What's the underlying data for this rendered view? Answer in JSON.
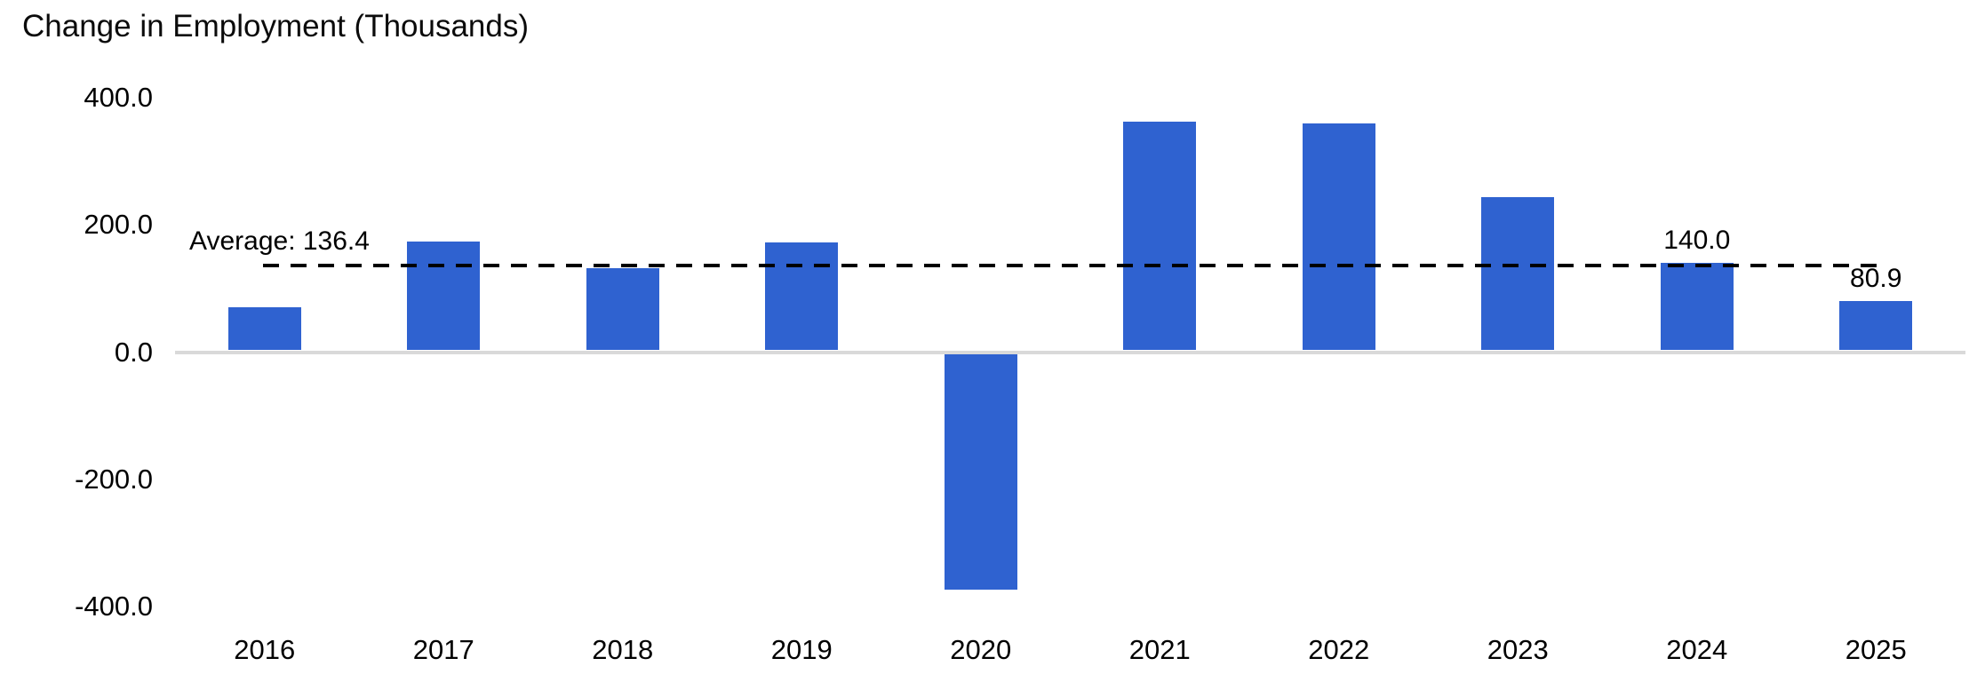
{
  "title": "Change in Employment (Thousands)",
  "chart_data": {
    "type": "bar",
    "title": "Change in Employment (Thousands)",
    "categories": [
      "2016",
      "2017",
      "2018",
      "2019",
      "2020",
      "2021",
      "2022",
      "2023",
      "2024",
      "2025"
    ],
    "values": [
      71,
      174,
      132,
      173,
      -373,
      363,
      360,
      243,
      140,
      80.9
    ],
    "value_labels": [
      "",
      "",
      "",
      "",
      "",
      "",
      "",
      "",
      "140.0",
      "80.9"
    ],
    "average_line": {
      "value": 136.4,
      "label": "Average: 136.4",
      "style": "dashed",
      "color": "#000000"
    },
    "xlabel": "",
    "ylabel": "",
    "ylim": [
      -400,
      400
    ],
    "yticks": [
      400,
      200,
      0,
      -200,
      -400
    ],
    "ytick_labels": [
      "400.0",
      "200.0",
      "0.0",
      "-200.0",
      "-400.0"
    ],
    "grid": false,
    "legend": "none",
    "bar_color": "#2F62D0",
    "axis_line_color": "#D9D9D9",
    "text_color": "#000000"
  }
}
